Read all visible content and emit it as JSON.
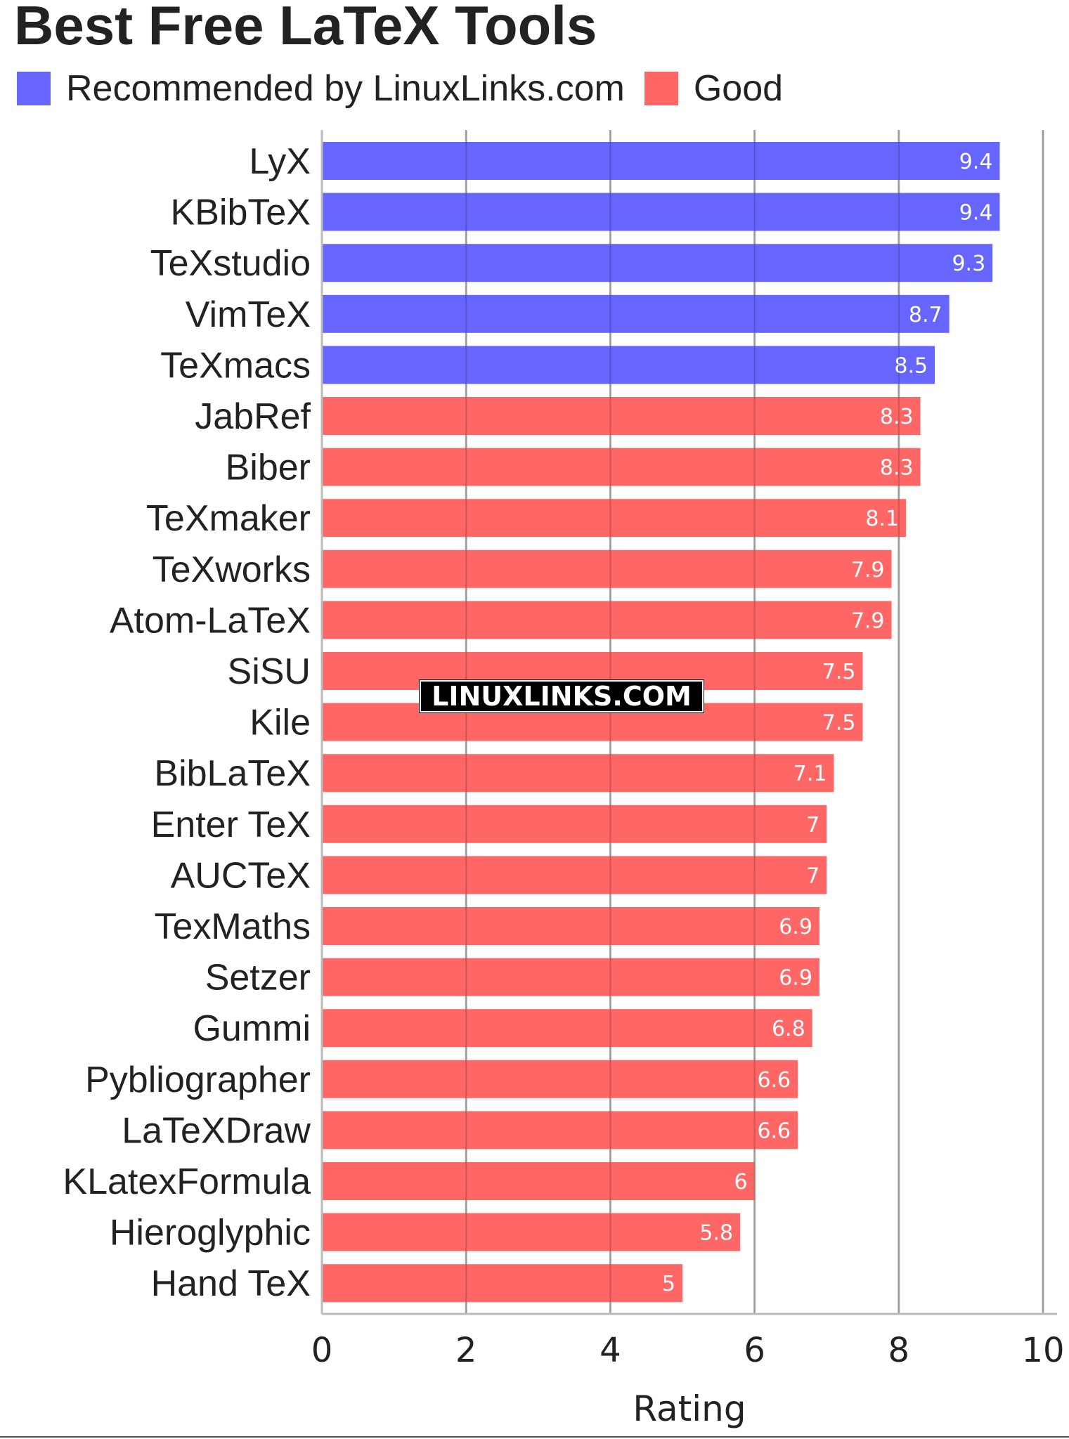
{
  "chart_data": {
    "type": "bar",
    "orientation": "horizontal",
    "title": "Best Free LaTeX Tools",
    "xlabel": "Rating",
    "ylabel": "",
    "xlim": [
      0,
      10
    ],
    "xticks": [
      0,
      2,
      4,
      6,
      8,
      10
    ],
    "grid": true,
    "legend_position": "top-left",
    "legend": [
      {
        "name": "Recommended by LinuxLinks.com",
        "color": "#6666ff"
      },
      {
        "name": "Good",
        "color": "#ff6666"
      }
    ],
    "categories": [
      "LyX",
      "KBibTeX",
      "TeXstudio",
      "VimTeX",
      "TeXmacs",
      "JabRef",
      "Biber",
      "TeXmaker",
      "TeXworks",
      "Atom-LaTeX",
      "SiSU",
      "Kile",
      "BibLaTeX",
      "Enter TeX",
      "AUCTeX",
      "TexMaths",
      "Setzer",
      "Gummi",
      "Pybliographer",
      "LaTeXDraw",
      "KLatexFormula",
      "Hieroglyphic",
      "Hand TeX"
    ],
    "values": [
      9.4,
      9.4,
      9.3,
      8.7,
      8.5,
      8.3,
      8.3,
      8.1,
      7.9,
      7.9,
      7.5,
      7.5,
      7.1,
      7,
      7,
      6.9,
      6.9,
      6.8,
      6.6,
      6.6,
      6,
      5.8,
      5
    ],
    "value_labels": [
      "9.4",
      "9.4",
      "9.3",
      "8.7",
      "8.5",
      "8.3",
      "8.3",
      "8.1",
      "7.9",
      "7.9",
      "7.5",
      "7.5",
      "7.1",
      "7",
      "7",
      "6.9",
      "6.9",
      "6.8",
      "6.6",
      "6.6",
      "6",
      "5.8",
      "5"
    ],
    "groups": [
      "Recommended by LinuxLinks.com",
      "Recommended by LinuxLinks.com",
      "Recommended by LinuxLinks.com",
      "Recommended by LinuxLinks.com",
      "Recommended by LinuxLinks.com",
      "Good",
      "Good",
      "Good",
      "Good",
      "Good",
      "Good",
      "Good",
      "Good",
      "Good",
      "Good",
      "Good",
      "Good",
      "Good",
      "Good",
      "Good",
      "Good",
      "Good",
      "Good"
    ]
  },
  "watermark": "LINUXLINKS.COM"
}
